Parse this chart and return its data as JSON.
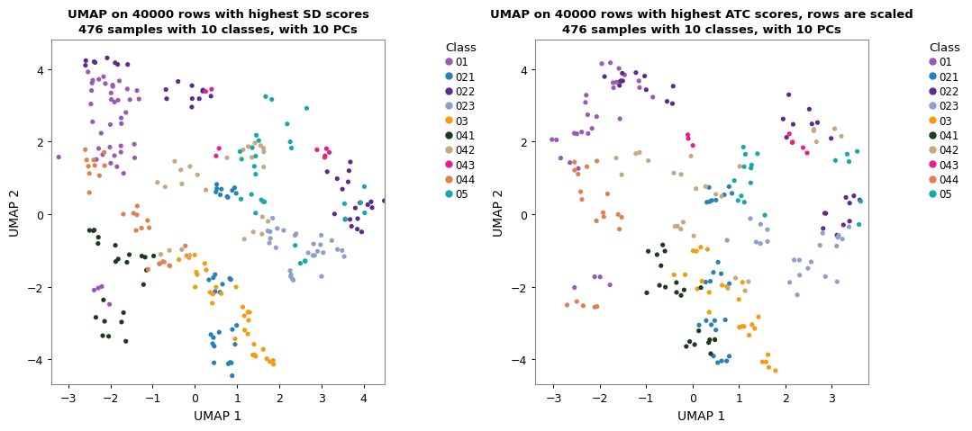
{
  "title1": "UMAP on 40000 rows with highest SD scores\n476 samples with 10 classes, with 10 PCs",
  "title2": "UMAP on 40000 rows with highest ATC scores, rows are scaled\n476 samples with 10 classes, with 10 PCs",
  "xlabel": "UMAP 1",
  "ylabel": "UMAP 2",
  "xlim1": [
    -3.4,
    4.5
  ],
  "ylim1": [
    -4.7,
    4.8
  ],
  "xlim2": [
    -3.4,
    3.8
  ],
  "ylim2": [
    -4.7,
    4.8
  ],
  "xticks1": [
    -3,
    -2,
    -1,
    0,
    1,
    2,
    3,
    4
  ],
  "yticks1": [
    -4,
    -2,
    0,
    2,
    4
  ],
  "xticks2": [
    -3,
    -2,
    -1,
    0,
    1,
    2,
    3
  ],
  "yticks2": [
    -4,
    -2,
    0,
    2,
    4
  ],
  "classes": [
    "01",
    "021",
    "022",
    "023",
    "03",
    "041",
    "042",
    "043",
    "044",
    "05"
  ],
  "colors": {
    "01": "#9B59B6",
    "021": "#2980B9",
    "022": "#5B2C8D",
    "023": "#8E9FCA",
    "03": "#F39C12",
    "041": "#1C3A1C",
    "042": "#C8A882",
    "043": "#E91E8C",
    "044": "#E08050",
    "05": "#17A8A8"
  },
  "seeds": {
    "p1_01": 42,
    "p1_021": 43,
    "p1_022": 44,
    "p1_023": 45,
    "p1_03": 46,
    "p1_041": 47,
    "p1_042": 48,
    "p1_043": 49,
    "p1_044": 50,
    "p1_05": 51,
    "p2_01": 62,
    "p2_021": 63,
    "p2_022": 64,
    "p2_023": 65,
    "p2_03": 66,
    "p2_041": 67,
    "p2_042": 68,
    "p2_043": 69,
    "p2_044": 70,
    "p2_05": 71
  }
}
